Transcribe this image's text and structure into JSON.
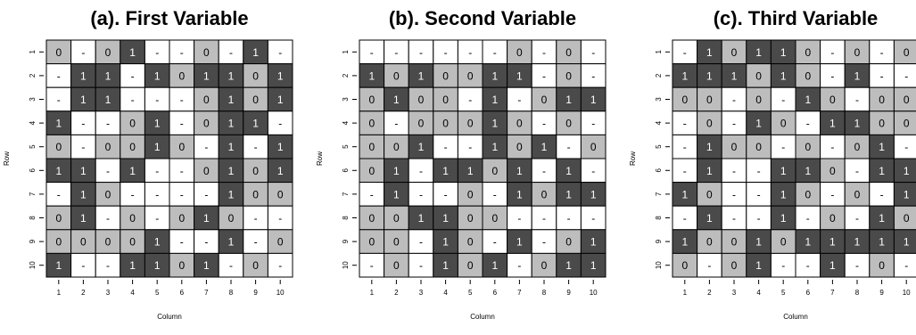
{
  "chart_data": [
    {
      "type": "heatmap",
      "title": "(a). First Variable",
      "xlabel": "Column",
      "ylabel": "Row",
      "x_ticks": [
        "1",
        "2",
        "3",
        "4",
        "5",
        "6",
        "7",
        "8",
        "9",
        "10"
      ],
      "y_ticks": [
        "1",
        "2",
        "3",
        "4",
        "5",
        "6",
        "7",
        "8",
        "9",
        "10"
      ],
      "legend": "none",
      "color_map": {
        "-": "#ffffff",
        "0": "#bdbdbd",
        "1": "#4a4a4a"
      },
      "grid": [
        [
          "0",
          "-",
          "0",
          "1",
          "-",
          "-",
          "0",
          "-",
          "1",
          "-"
        ],
        [
          "-",
          "1",
          "1",
          "-",
          "1",
          "0",
          "1",
          "1",
          "0",
          "1"
        ],
        [
          "-",
          "1",
          "1",
          "-",
          "-",
          "-",
          "0",
          "1",
          "0",
          "1"
        ],
        [
          "1",
          "-",
          "-",
          "0",
          "1",
          "-",
          "0",
          "1",
          "1",
          "-"
        ],
        [
          "0",
          "-",
          "0",
          "0",
          "1",
          "0",
          "-",
          "1",
          "-",
          "1"
        ],
        [
          "1",
          "1",
          "-",
          "1",
          "-",
          "-",
          "0",
          "1",
          "0",
          "1"
        ],
        [
          "-",
          "1",
          "0",
          "-",
          "-",
          "-",
          "-",
          "1",
          "0",
          "0"
        ],
        [
          "0",
          "1",
          "-",
          "0",
          "-",
          "0",
          "1",
          "0",
          "-",
          "-"
        ],
        [
          "0",
          "0",
          "0",
          "0",
          "1",
          "-",
          "-",
          "1",
          "-",
          "0"
        ],
        [
          "1",
          "-",
          "-",
          "1",
          "1",
          "0",
          "1",
          "-",
          "0",
          "-"
        ]
      ]
    },
    {
      "type": "heatmap",
      "title": "(b). Second Variable",
      "xlabel": "Column",
      "ylabel": "Row",
      "x_ticks": [
        "1",
        "2",
        "3",
        "4",
        "5",
        "6",
        "7",
        "8",
        "9",
        "10"
      ],
      "y_ticks": [
        "1",
        "2",
        "3",
        "4",
        "5",
        "6",
        "7",
        "8",
        "9",
        "10"
      ],
      "legend": "none",
      "color_map": {
        "-": "#ffffff",
        "0": "#bdbdbd",
        "1": "#4a4a4a"
      },
      "grid": [
        [
          "-",
          "-",
          "-",
          "-",
          "-",
          "-",
          "0",
          "-",
          "0",
          "-"
        ],
        [
          "1",
          "0",
          "1",
          "0",
          "0",
          "1",
          "1",
          "-",
          "0",
          "-"
        ],
        [
          "0",
          "1",
          "0",
          "0",
          "-",
          "1",
          "-",
          "0",
          "1",
          "1"
        ],
        [
          "0",
          "-",
          "0",
          "0",
          "0",
          "1",
          "0",
          "-",
          "0",
          "-"
        ],
        [
          "0",
          "0",
          "1",
          "-",
          "-",
          "1",
          "0",
          "1",
          "-",
          "0"
        ],
        [
          "0",
          "1",
          "-",
          "1",
          "1",
          "0",
          "1",
          "-",
          "1",
          "-"
        ],
        [
          "-",
          "1",
          "-",
          "-",
          "0",
          "-",
          "1",
          "0",
          "1",
          "1"
        ],
        [
          "0",
          "0",
          "1",
          "1",
          "0",
          "0",
          "-",
          "-",
          "-",
          "-"
        ],
        [
          "0",
          "0",
          "-",
          "1",
          "0",
          "-",
          "1",
          "-",
          "0",
          "1"
        ],
        [
          "-",
          "0",
          "-",
          "1",
          "0",
          "1",
          "-",
          "0",
          "1",
          "1"
        ]
      ]
    },
    {
      "type": "heatmap",
      "title": "(c). Third Variable",
      "xlabel": "Column",
      "ylabel": "Row",
      "x_ticks": [
        "1",
        "2",
        "3",
        "4",
        "5",
        "6",
        "7",
        "8",
        "9",
        "10"
      ],
      "y_ticks": [
        "1",
        "2",
        "3",
        "4",
        "5",
        "6",
        "7",
        "8",
        "9",
        "10"
      ],
      "legend": "none",
      "color_map": {
        "-": "#ffffff",
        "0": "#bdbdbd",
        "1": "#4a4a4a"
      },
      "grid": [
        [
          "-",
          "1",
          "0",
          "1",
          "1",
          "0",
          "-",
          "0",
          "-",
          "0"
        ],
        [
          "1",
          "1",
          "1",
          "0",
          "1",
          "0",
          "-",
          "1",
          "-",
          "-"
        ],
        [
          "0",
          "0",
          "-",
          "0",
          "-",
          "1",
          "0",
          "-",
          "0",
          "0"
        ],
        [
          "-",
          "0",
          "-",
          "1",
          "0",
          "-",
          "1",
          "1",
          "0",
          "0"
        ],
        [
          "-",
          "1",
          "0",
          "0",
          "-",
          "0",
          "-",
          "0",
          "1",
          "-"
        ],
        [
          "-",
          "1",
          "-",
          "-",
          "1",
          "1",
          "0",
          "-",
          "1",
          "1"
        ],
        [
          "1",
          "0",
          "-",
          "-",
          "1",
          "0",
          "-",
          "0",
          "-",
          "1"
        ],
        [
          "-",
          "1",
          "-",
          "-",
          "1",
          "-",
          "0",
          "-",
          "1",
          "0"
        ],
        [
          "1",
          "0",
          "0",
          "1",
          "0",
          "1",
          "1",
          "1",
          "1",
          "1"
        ],
        [
          "0",
          "-",
          "0",
          "1",
          "-",
          "-",
          "1",
          "-",
          "0",
          "-"
        ]
      ]
    }
  ]
}
